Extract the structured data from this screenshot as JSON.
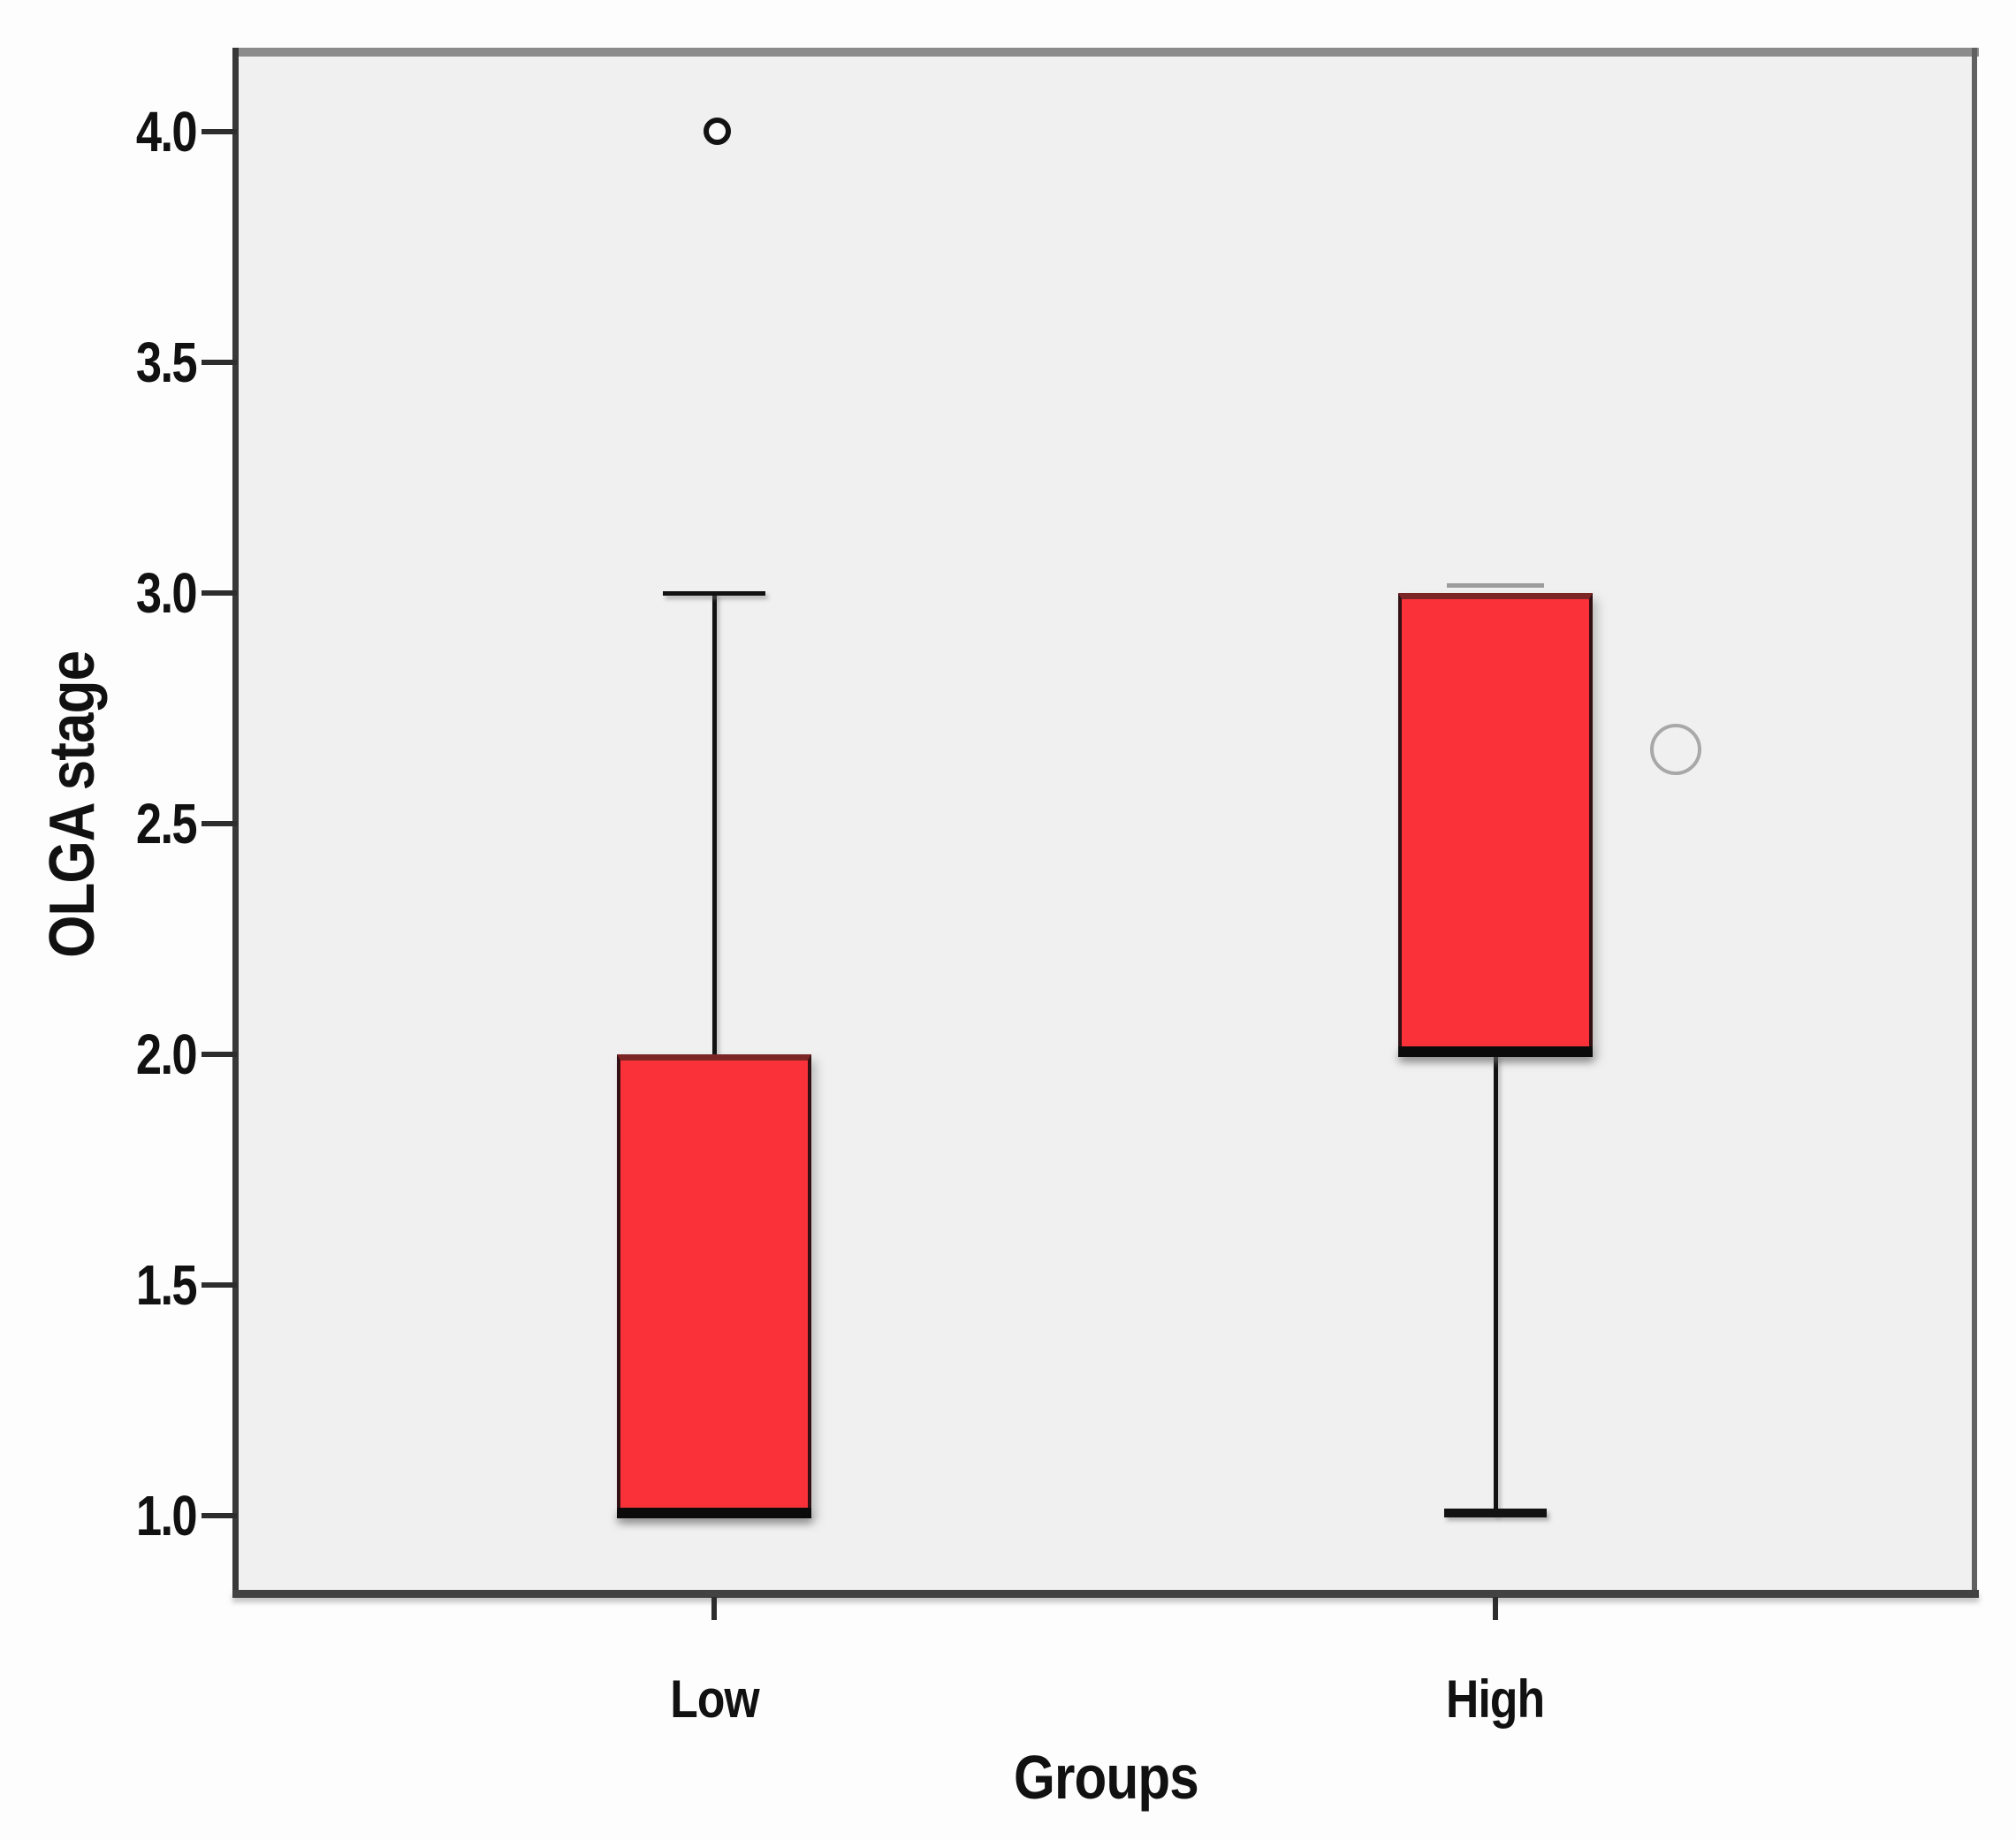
{
  "chart_data": {
    "type": "box",
    "title": "",
    "xlabel": "Groups",
    "ylabel": "OLGA stage",
    "categories": [
      "Low",
      "High"
    ],
    "y_ticks": [
      "4.0",
      "3.5",
      "3.0",
      "2.5",
      "2.0",
      "1.5",
      "1.0"
    ],
    "ylim": [
      0.83,
      4.17
    ],
    "grid": false,
    "legend": false,
    "series": [
      {
        "category": "Low",
        "q1": 1.0,
        "median": 1.0,
        "q3": 2.0,
        "whisker_low": 1.0,
        "whisker_high": 3.0,
        "cap_high_style": "thin",
        "cap_low_style": "none",
        "outliers": [
          {
            "value": 4.0,
            "marker": "small-black-circle",
            "dx": 3
          }
        ]
      },
      {
        "category": "High",
        "q1": 2.0,
        "median": 2.0,
        "q3": 3.0,
        "whisker_low": 1.0,
        "whisker_high": 3.0,
        "cap_high_style": "flush-gray",
        "cap_low_style": "thick",
        "outliers": [
          {
            "value": 2.66,
            "marker": "large-gray-circle",
            "dx": 204
          }
        ]
      }
    ],
    "colors": {
      "box_fill": "#fa3138",
      "box_border": "#331013",
      "box_border_top": "#7c2525",
      "whisker": "#121212",
      "median": "#0b0b0b",
      "outlier_black": "#131313",
      "outlier_gray": "#a8a8a8",
      "plot_background": "#f0f0f0",
      "page_background": "#fdfdfd",
      "axis_text": "#111111"
    }
  }
}
